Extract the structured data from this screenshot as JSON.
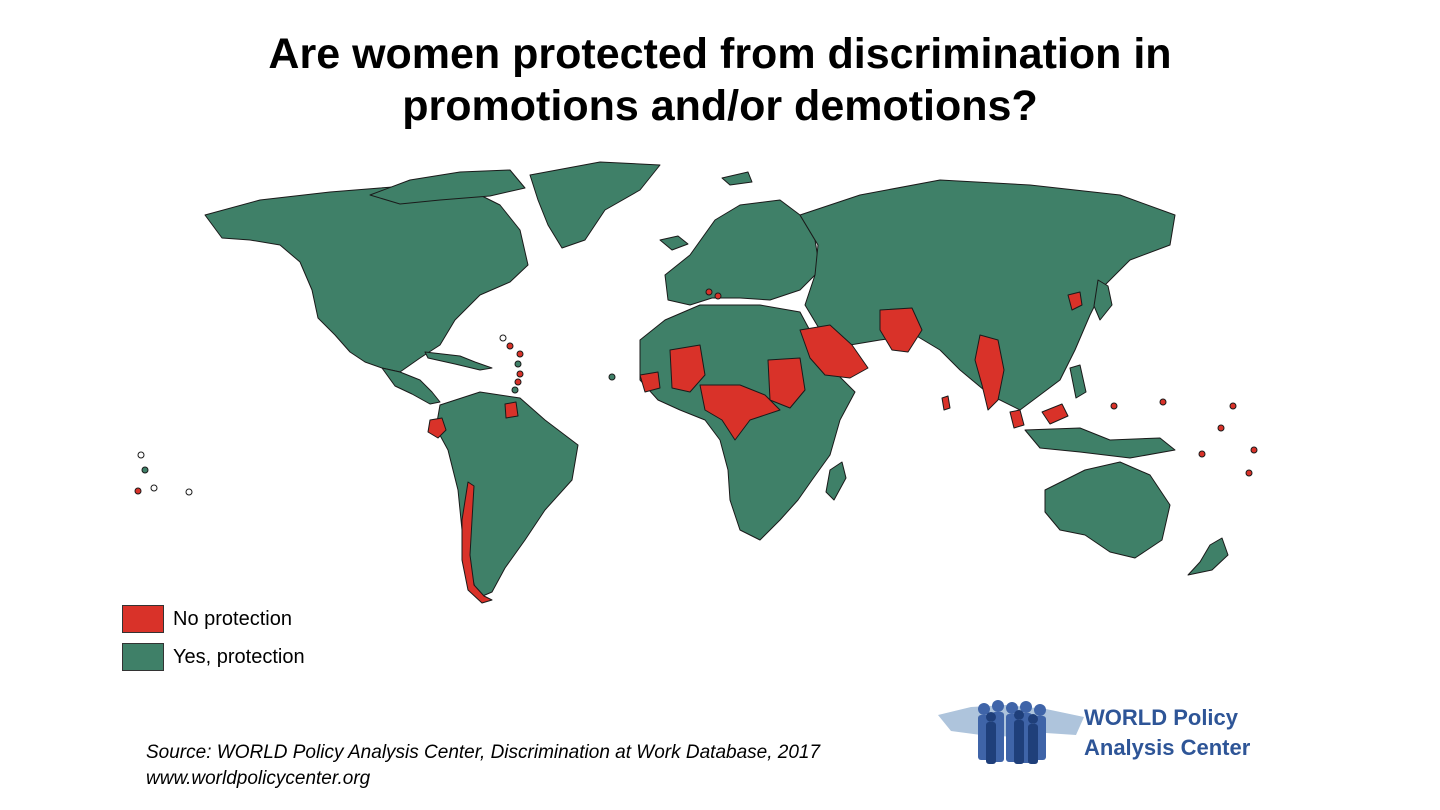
{
  "title": {
    "line1": "Are women protected from discrimination in",
    "line2": "promotions and/or demotions?"
  },
  "legend": [
    {
      "label": "No protection",
      "color": "#d93229"
    },
    {
      "label": "Yes, protection",
      "color": "#3f8068"
    }
  ],
  "source": {
    "line1": "Source: WORLD Policy Analysis Center, Discrimination at Work Database, 2017",
    "line2": "www.worldpolicycenter.org"
  },
  "logo": {
    "line1": "WORLD Policy",
    "line2": "Analysis Center"
  },
  "colors": {
    "no_protection": "#d93229",
    "yes_protection": "#3f8068",
    "border": "#1a1a1a",
    "logo_blue": "#2e5597"
  }
}
